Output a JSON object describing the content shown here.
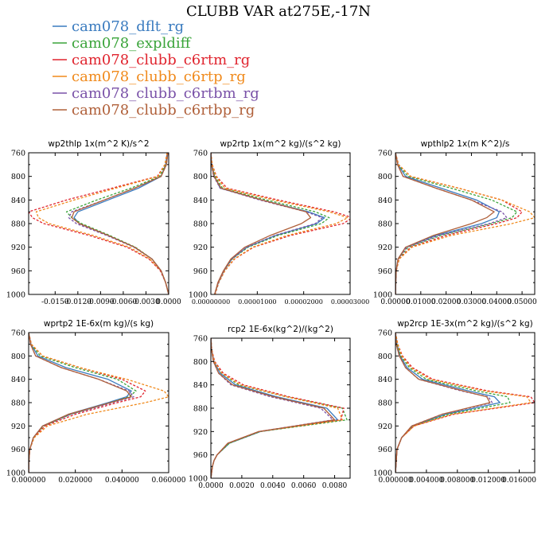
{
  "figure": {
    "title": "CLUBB VAR at275E,-17N"
  },
  "legend": [
    {
      "name": "cam078_dflt_rg",
      "color": "#3a7bbf"
    },
    {
      "name": "cam078_expldiff",
      "color": "#3aa43a"
    },
    {
      "name": "cam078_clubb_c6rtm_rg",
      "color": "#e0242e"
    },
    {
      "name": "cam078_clubb_c6rtp_rg",
      "color": "#f08a1c"
    },
    {
      "name": "cam078_clubb_c6rtbm_rg",
      "color": "#7a52a8"
    },
    {
      "name": "cam078_clubb_c6rtbp_rg",
      "color": "#b0603a"
    }
  ],
  "chart_data": [
    {
      "type": "line",
      "title": "wp2thlp  1x(m^2 K)/s^2",
      "xlim": [
        -0.0185,
        0.0
      ],
      "ylim": [
        760,
        1000
      ],
      "y_reversed": true,
      "xticks": [
        -0.015,
        -0.012,
        -0.009,
        -0.006,
        -0.003,
        0.0
      ],
      "xtick_labels": [
        "-0.0150",
        "-0.0120",
        "-0.0090",
        "-0.0060",
        "-0.0030",
        "0.0000"
      ],
      "yticks": [
        760,
        800,
        840,
        880,
        920,
        960,
        1000
      ],
      "y": [
        760,
        780,
        800,
        820,
        840,
        860,
        870,
        880,
        900,
        920,
        940,
        960,
        980,
        1000
      ],
      "series": [
        {
          "name": "cam078_dflt_rg",
          "style": "solid",
          "values": [
            -0.0002,
            -0.0004,
            -0.001,
            -0.004,
            -0.008,
            -0.012,
            -0.0125,
            -0.0118,
            -0.008,
            -0.0045,
            -0.0022,
            -0.001,
            -0.0004,
            0.0
          ]
        },
        {
          "name": "cam078_expldiff",
          "style": "dashed",
          "values": [
            -0.0002,
            -0.0004,
            -0.0012,
            -0.005,
            -0.0095,
            -0.0135,
            -0.0128,
            -0.0115,
            -0.0078,
            -0.0044,
            -0.0022,
            -0.001,
            -0.0004,
            0.0
          ]
        },
        {
          "name": "cam078_clubb_c6rtm_rg",
          "style": "dashed",
          "values": [
            -0.0002,
            -0.0005,
            -0.0015,
            -0.0075,
            -0.0135,
            -0.0185,
            -0.018,
            -0.0165,
            -0.0105,
            -0.0055,
            -0.0026,
            -0.0011,
            -0.0004,
            0.0
          ]
        },
        {
          "name": "cam078_clubb_c6rtp_rg",
          "style": "dashed",
          "values": [
            -0.0002,
            -0.0005,
            -0.0014,
            -0.007,
            -0.0125,
            -0.0175,
            -0.0172,
            -0.0158,
            -0.01,
            -0.0052,
            -0.0025,
            -0.001,
            -0.0004,
            0.0
          ]
        },
        {
          "name": "cam078_clubb_c6rtbm_rg",
          "style": "dashed",
          "values": [
            -0.0001,
            -0.0003,
            -0.001,
            -0.0045,
            -0.0085,
            -0.0128,
            -0.0132,
            -0.0122,
            -0.0082,
            -0.0046,
            -0.0022,
            -0.001,
            -0.0004,
            0.0
          ]
        },
        {
          "name": "cam078_clubb_c6rtbp_rg",
          "style": "solid",
          "values": [
            -0.0001,
            -0.0003,
            -0.001,
            -0.0045,
            -0.0085,
            -0.0125,
            -0.0128,
            -0.0118,
            -0.008,
            -0.0045,
            -0.0022,
            -0.001,
            -0.0004,
            0.0
          ]
        }
      ]
    },
    {
      "type": "line",
      "title": "wp2rtp  1x(m^2 kg)/(s^2 kg)",
      "xlim": [
        0.0,
        3e-05
      ],
      "ylim": [
        760,
        1000
      ],
      "y_reversed": true,
      "xticks": [
        0.0,
        1e-05,
        2e-05,
        3e-05
      ],
      "xtick_labels": [
        "0.00000000",
        "0.00001000",
        "0.00002000",
        "0.00003000"
      ],
      "yticks": [
        760,
        800,
        840,
        880,
        920,
        960,
        1000
      ],
      "y": [
        760,
        780,
        800,
        820,
        840,
        860,
        870,
        880,
        900,
        920,
        940,
        960,
        980,
        1000
      ],
      "series": [
        {
          "name": "cam078_dflt_rg",
          "style": "solid",
          "values": [
            0.0,
            2e-07,
            8e-07,
            2e-06,
            1.1e-05,
            2.1e-05,
            2.45e-05,
            2.28e-05,
            1.4e-05,
            7.8e-06,
            4.5e-06,
            2.8e-06,
            1.6e-06,
            8e-07
          ]
        },
        {
          "name": "cam078_expldiff",
          "style": "dashed",
          "values": [
            0.0,
            2e-07,
            9e-07,
            2.5e-06,
            1.2e-05,
            2.25e-05,
            2.55e-05,
            2.38e-05,
            1.45e-05,
            8e-06,
            4.6e-06,
            2.8e-06,
            1.6e-06,
            8e-07
          ]
        },
        {
          "name": "cam078_clubb_c6rtm_rg",
          "style": "dashed",
          "values": [
            0.0,
            3e-07,
            1.2e-06,
            3.5e-06,
            1.45e-05,
            2.65e-05,
            3.05e-05,
            2.85e-05,
            1.72e-05,
            9.2e-06,
            5.1e-06,
            3e-06,
            1.7e-06,
            9e-07
          ]
        },
        {
          "name": "cam078_clubb_c6rtp_rg",
          "style": "dashed",
          "values": [
            0.0,
            3e-07,
            1.1e-06,
            3e-06,
            1.35e-05,
            2.55e-05,
            2.95e-05,
            2.7e-05,
            1.65e-05,
            9e-06,
            5e-06,
            3e-06,
            1.7e-06,
            9e-07
          ]
        },
        {
          "name": "cam078_clubb_c6rtbm_rg",
          "style": "dashed",
          "values": [
            0.0,
            1e-07,
            6e-07,
            2e-06,
            1.05e-05,
            2.05e-05,
            2.4e-05,
            2.25e-05,
            1.38e-05,
            7.7e-06,
            4.5e-06,
            2.8e-06,
            1.6e-06,
            8e-07
          ]
        },
        {
          "name": "cam078_clubb_c6rtbp_rg",
          "style": "solid",
          "values": [
            0.0,
            1e-07,
            7e-07,
            2.2e-06,
            1.1e-05,
            2.05e-05,
            2.15e-05,
            1.95e-05,
            1.28e-05,
            7.3e-06,
            4.3e-06,
            2.7e-06,
            1.5e-06,
            8e-07
          ]
        }
      ]
    },
    {
      "type": "line",
      "title": "wpthlp2  1x(m K^2)/s",
      "xlim": [
        0.0,
        0.055
      ],
      "ylim": [
        760,
        1000
      ],
      "y_reversed": true,
      "xticks": [
        0.0,
        0.01,
        0.02,
        0.03,
        0.04,
        0.05
      ],
      "xtick_labels": [
        "0.00000",
        "0.01000",
        "0.02000",
        "0.03000",
        "0.04000",
        "0.05000"
      ],
      "yticks": [
        760,
        800,
        840,
        880,
        920,
        960,
        1000
      ],
      "y": [
        760,
        780,
        800,
        820,
        840,
        860,
        870,
        880,
        900,
        920,
        940,
        960,
        980,
        1000
      ],
      "series": [
        {
          "name": "cam078_dflt_rg",
          "style": "solid",
          "values": [
            0.0,
            0.001,
            0.004,
            0.018,
            0.032,
            0.041,
            0.04,
            0.034,
            0.016,
            0.004,
            0.001,
            0.0003,
            0.0001,
            0.0
          ]
        },
        {
          "name": "cam078_expldiff",
          "style": "dashed",
          "values": [
            0.0,
            0.001,
            0.005,
            0.022,
            0.038,
            0.048,
            0.046,
            0.038,
            0.018,
            0.005,
            0.0012,
            0.0003,
            0.0001,
            0.0
          ]
        },
        {
          "name": "cam078_clubb_c6rtm_rg",
          "style": "dashed",
          "values": [
            0.0,
            0.0012,
            0.006,
            0.025,
            0.042,
            0.05,
            0.048,
            0.04,
            0.02,
            0.006,
            0.0014,
            0.0003,
            0.0001,
            0.0
          ]
        },
        {
          "name": "cam078_clubb_c6rtp_rg",
          "style": "dashed",
          "values": [
            0.0,
            0.0012,
            0.006,
            0.025,
            0.042,
            0.053,
            0.055,
            0.046,
            0.022,
            0.0065,
            0.0015,
            0.0003,
            0.0001,
            0.0
          ]
        },
        {
          "name": "cam078_clubb_c6rtbm_rg",
          "style": "dashed",
          "values": [
            0.0,
            0.0008,
            0.003,
            0.016,
            0.03,
            0.042,
            0.044,
            0.037,
            0.017,
            0.0045,
            0.001,
            0.0003,
            0.0001,
            0.0
          ]
        },
        {
          "name": "cam078_clubb_c6rtbp_rg",
          "style": "solid",
          "values": [
            0.0,
            0.0008,
            0.003,
            0.016,
            0.03,
            0.039,
            0.036,
            0.03,
            0.015,
            0.004,
            0.001,
            0.0003,
            0.0001,
            0.0
          ]
        }
      ]
    },
    {
      "type": "line",
      "title": "wprtp2  1E-6x(m kg)/(s kg)",
      "xlim": [
        0.0,
        0.06
      ],
      "ylim": [
        760,
        1000
      ],
      "y_reversed": true,
      "xticks": [
        0.0,
        0.02,
        0.04,
        0.06
      ],
      "xtick_labels": [
        "0.000000",
        "0.020000",
        "0.040000",
        "0.060000"
      ],
      "yticks": [
        760,
        800,
        840,
        880,
        920,
        960,
        1000
      ],
      "y": [
        760,
        780,
        800,
        820,
        840,
        860,
        870,
        880,
        900,
        920,
        940,
        960,
        980,
        1000
      ],
      "series": [
        {
          "name": "cam078_dflt_rg",
          "style": "solid",
          "values": [
            0.0,
            0.001,
            0.004,
            0.016,
            0.034,
            0.044,
            0.042,
            0.034,
            0.017,
            0.006,
            0.002,
            0.0005,
            0.0001,
            0.0
          ]
        },
        {
          "name": "cam078_expldiff",
          "style": "dashed",
          "values": [
            0.0,
            0.001,
            0.005,
            0.02,
            0.038,
            0.046,
            0.043,
            0.035,
            0.018,
            0.0065,
            0.002,
            0.0005,
            0.0001,
            0.0
          ]
        },
        {
          "name": "cam078_clubb_c6rtm_rg",
          "style": "dashed",
          "values": [
            0.0,
            0.0012,
            0.006,
            0.022,
            0.04,
            0.05,
            0.048,
            0.038,
            0.02,
            0.007,
            0.0022,
            0.0005,
            0.0001,
            0.0
          ]
        },
        {
          "name": "cam078_clubb_c6rtp_rg",
          "style": "dashed",
          "values": [
            0.0,
            0.0012,
            0.006,
            0.022,
            0.042,
            0.058,
            0.06,
            0.05,
            0.025,
            0.008,
            0.0024,
            0.0005,
            0.0001,
            0.0
          ]
        },
        {
          "name": "cam078_clubb_c6rtbm_rg",
          "style": "dashed",
          "values": [
            0.0,
            0.0008,
            0.003,
            0.014,
            0.03,
            0.043,
            0.045,
            0.036,
            0.018,
            0.006,
            0.002,
            0.0005,
            0.0001,
            0.0
          ]
        },
        {
          "name": "cam078_clubb_c6rtbp_rg",
          "style": "solid",
          "values": [
            0.0,
            0.0008,
            0.003,
            0.014,
            0.03,
            0.042,
            0.044,
            0.035,
            0.017,
            0.006,
            0.002,
            0.0005,
            0.0001,
            0.0
          ]
        }
      ]
    },
    {
      "type": "line",
      "title": "rcp2  1E-6x(kg^2)/(kg^2)",
      "xlim": [
        0.0,
        0.009
      ],
      "ylim": [
        760,
        1000
      ],
      "y_reversed": true,
      "xticks": [
        0.0,
        0.002,
        0.004,
        0.006,
        0.008
      ],
      "xtick_labels": [
        "0.0000",
        "0.0020",
        "0.0040",
        "0.0060",
        "0.0080"
      ],
      "yticks": [
        760,
        800,
        840,
        880,
        920,
        960,
        1000
      ],
      "y": [
        760,
        780,
        800,
        820,
        840,
        860,
        880,
        900,
        920,
        940,
        960,
        970,
        980,
        1000
      ],
      "series": [
        {
          "name": "cam078_dflt_rg",
          "style": "solid",
          "values": [
            0.0,
            5e-05,
            0.0002,
            0.0006,
            0.0016,
            0.0042,
            0.0075,
            0.0082,
            0.0032,
            0.0012,
            0.0004,
            0.0002,
            0.0001,
            0.0
          ]
        },
        {
          "name": "cam078_expldiff",
          "style": "dashed",
          "values": [
            0.0,
            5e-05,
            0.0002,
            0.0007,
            0.0018,
            0.0048,
            0.0085,
            0.0088,
            0.0032,
            0.0012,
            0.0004,
            0.0002,
            0.0001,
            0.0
          ]
        },
        {
          "name": "cam078_clubb_c6rtm_rg",
          "style": "dashed",
          "values": [
            0.0,
            6e-05,
            0.00025,
            0.0008,
            0.0021,
            0.005,
            0.0086,
            0.0084,
            0.0031,
            0.0011,
            0.0004,
            0.0002,
            0.0001,
            0.0
          ]
        },
        {
          "name": "cam078_clubb_c6rtp_rg",
          "style": "dashed",
          "values": [
            0.0,
            6e-05,
            0.00022,
            0.0007,
            0.0019,
            0.0048,
            0.0082,
            0.0085,
            0.0031,
            0.0011,
            0.0004,
            0.0002,
            0.0001,
            0.0
          ]
        },
        {
          "name": "cam078_clubb_c6rtbm_rg",
          "style": "dashed",
          "values": [
            0.0,
            4e-05,
            0.00016,
            0.0005,
            0.0013,
            0.0038,
            0.0071,
            0.0079,
            0.0031,
            0.0011,
            0.0004,
            0.0002,
            0.0001,
            0.0
          ]
        },
        {
          "name": "cam078_clubb_c6rtbp_rg",
          "style": "solid",
          "values": [
            0.0,
            4e-05,
            0.00017,
            0.0005,
            0.0014,
            0.004,
            0.0073,
            0.008,
            0.0031,
            0.0011,
            0.0004,
            0.0002,
            0.0001,
            0.0
          ]
        }
      ]
    },
    {
      "type": "line",
      "title": "wp2rcp  1E-3x(m^2 kg)/(s^2 kg)",
      "xlim": [
        0.0,
        0.018
      ],
      "ylim": [
        760,
        1000
      ],
      "y_reversed": true,
      "xticks": [
        0.0,
        0.004,
        0.008,
        0.012,
        0.016
      ],
      "xtick_labels": [
        "0.000000",
        "0.004000",
        "0.008000",
        "0.012000",
        "0.016000"
      ],
      "yticks": [
        760,
        800,
        840,
        880,
        920,
        960,
        1000
      ],
      "y": [
        760,
        780,
        800,
        820,
        840,
        860,
        870,
        880,
        900,
        920,
        940,
        960,
        980,
        1000
      ],
      "series": [
        {
          "name": "cam078_dflt_rg",
          "style": "solid",
          "values": [
            0.0,
            0.0002,
            0.0006,
            0.0015,
            0.0035,
            0.0095,
            0.0128,
            0.0135,
            0.0065,
            0.0022,
            0.0008,
            0.0002,
            0.0001,
            0.0
          ]
        },
        {
          "name": "cam078_expldiff",
          "style": "dashed",
          "values": [
            0.0,
            0.0002,
            0.0007,
            0.0018,
            0.004,
            0.0105,
            0.0145,
            0.0148,
            0.0068,
            0.0023,
            0.0008,
            0.0002,
            0.0001,
            0.0
          ]
        },
        {
          "name": "cam078_clubb_c6rtm_rg",
          "style": "dashed",
          "values": [
            0.0,
            0.0003,
            0.0009,
            0.0022,
            0.0048,
            0.012,
            0.0175,
            0.018,
            0.0075,
            0.0024,
            0.0008,
            0.0002,
            0.0001,
            0.0
          ]
        },
        {
          "name": "cam078_clubb_c6rtp_rg",
          "style": "dashed",
          "values": [
            0.0,
            0.0003,
            0.0008,
            0.002,
            0.0045,
            0.0115,
            0.017,
            0.0175,
            0.0073,
            0.0024,
            0.0008,
            0.0002,
            0.0001,
            0.0
          ]
        },
        {
          "name": "cam078_clubb_c6rtbm_rg",
          "style": "dashed",
          "values": [
            0.0,
            0.0001,
            0.0005,
            0.0013,
            0.003,
            0.0085,
            0.012,
            0.0125,
            0.006,
            0.0021,
            0.0008,
            0.0002,
            0.0001,
            0.0
          ]
        },
        {
          "name": "cam078_clubb_c6rtbp_rg",
          "style": "solid",
          "values": [
            0.0,
            0.0001,
            0.0005,
            0.0013,
            0.003,
            0.0088,
            0.0118,
            0.0122,
            0.006,
            0.0021,
            0.0008,
            0.0002,
            0.0001,
            0.0
          ]
        }
      ]
    }
  ]
}
